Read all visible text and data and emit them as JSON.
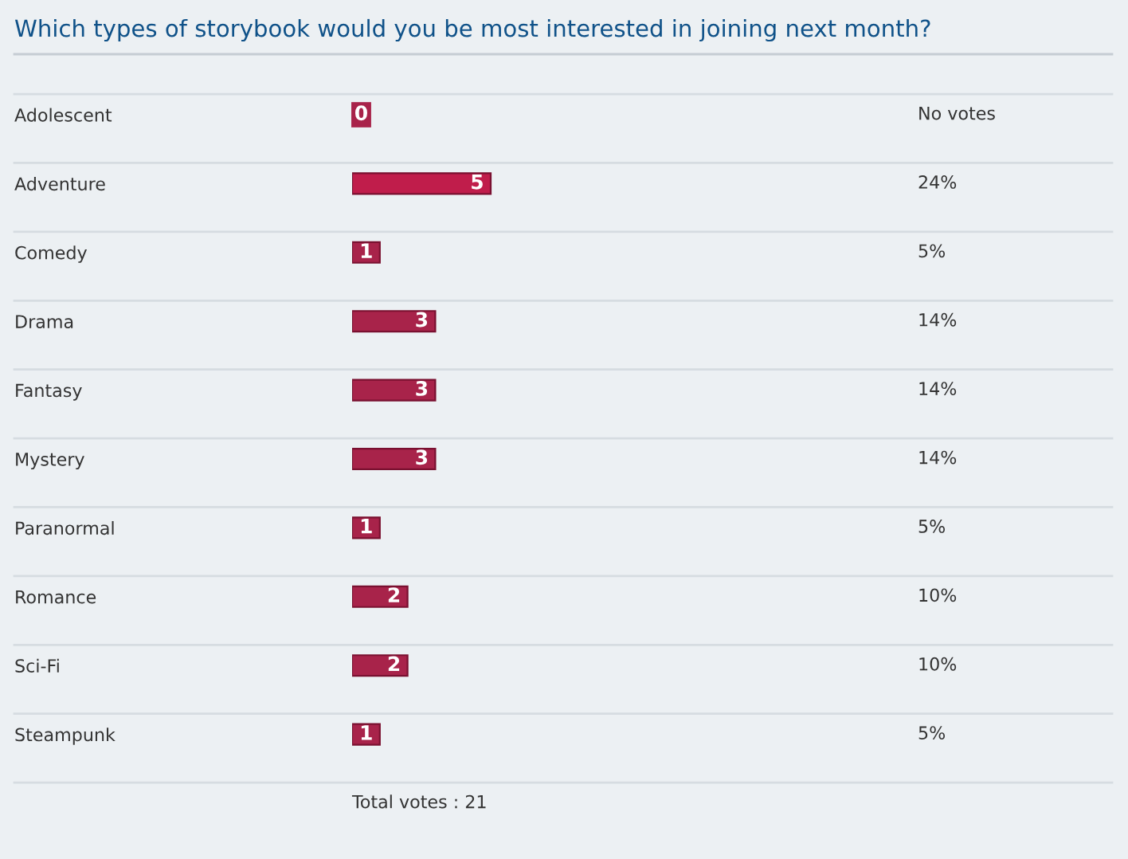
{
  "chart_data": {
    "type": "bar",
    "orientation": "horizontal",
    "title": "Which types of storybook would you be most interested in joining next month?",
    "categories": [
      "Adolescent",
      "Adventure",
      "Comedy",
      "Drama",
      "Fantasy",
      "Mystery",
      "Paranormal",
      "Romance",
      "Sci-Fi",
      "Steampunk"
    ],
    "values": [
      0,
      5,
      1,
      3,
      3,
      3,
      1,
      2,
      2,
      1
    ],
    "colors": [
      "#a8234a",
      "#c01d4b",
      "#a8234a",
      "#a8234a",
      "#a8234a",
      "#a8234a",
      "#a8234a",
      "#a8234a",
      "#a8234a",
      "#a8234a"
    ],
    "data_labels": true,
    "annotations": [
      "No votes",
      "24%",
      "5%",
      "14%",
      "14%",
      "14%",
      "5%",
      "10%",
      "10%",
      "5%",
      "Total votes : 21"
    ],
    "grid": false
  }
}
